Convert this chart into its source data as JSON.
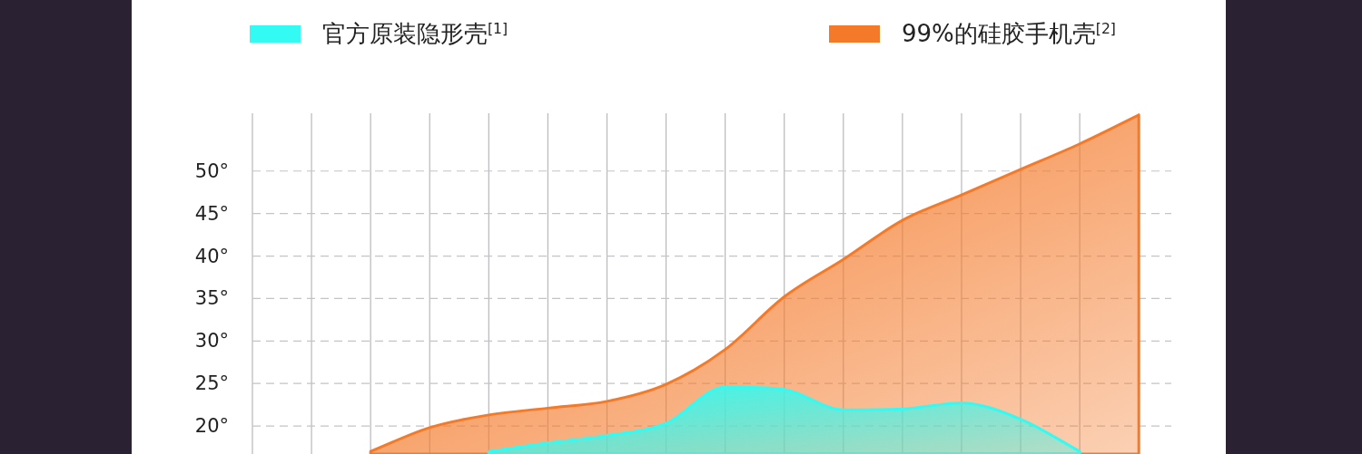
{
  "chart_data": {
    "type": "area",
    "categories": [
      null,
      null,
      null,
      null,
      null,
      null,
      null,
      null,
      null,
      null,
      null,
      null,
      null,
      null,
      null,
      null
    ],
    "series": [
      {
        "name": "官方原装隐形壳$^{[1]}$",
        "color": "#33fbf3",
        "values": [
          null,
          null,
          null,
          null,
          17.0,
          18.0,
          18.9,
          20.3,
          24.6,
          24.3,
          21.9,
          22.0,
          22.7,
          20.8,
          17.0,
          null
        ]
      },
      {
        "name": "99%的硅胶手机壳$^{[2]}$",
        "color": "#f47a2a",
        "values": [
          null,
          null,
          17.0,
          19.8,
          21.3,
          22.1,
          22.9,
          24.9,
          29.0,
          35.2,
          39.6,
          44.2,
          47.2,
          50.2,
          53.2,
          56.6
        ]
      }
    ],
    "ylim": [
      16.7,
      56.8
    ],
    "yticks": [
      {
        "value": 20,
        "label": "20°"
      },
      {
        "value": 25,
        "label": "25°"
      },
      {
        "value": 30,
        "label": "30°"
      },
      {
        "value": 35,
        "label": "35°"
      },
      {
        "value": 40,
        "label": "40°"
      },
      {
        "value": 45,
        "label": "45°"
      },
      {
        "value": 50,
        "label": "50°"
      }
    ],
    "grid": true,
    "legend": "top"
  }
}
